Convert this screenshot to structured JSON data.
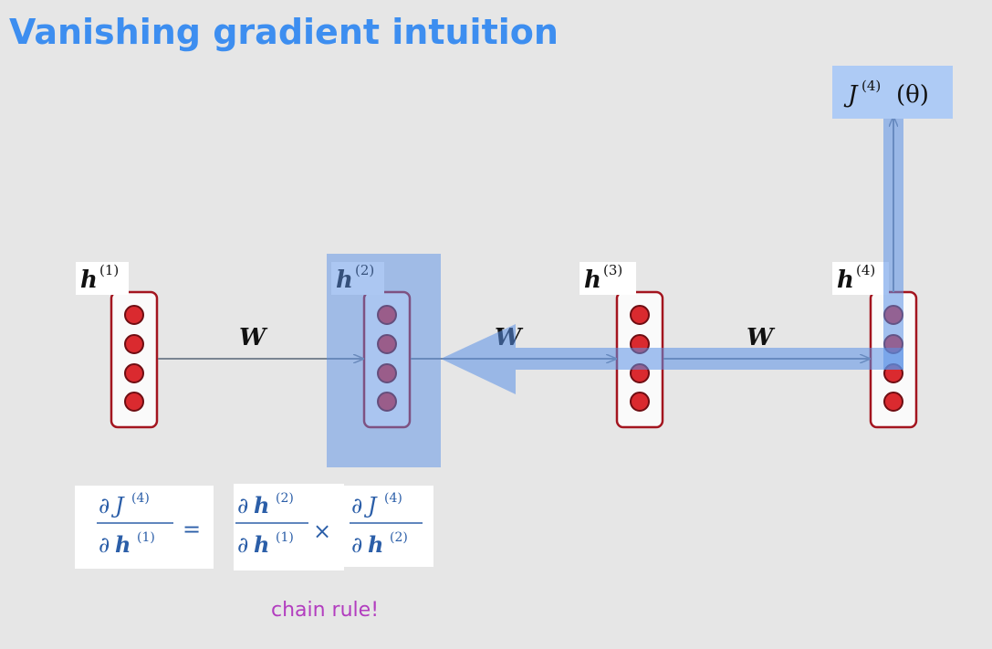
{
  "title": "Vanishing gradient intuition",
  "nodes": [
    {
      "label": {
        "base": "h",
        "sup": "(1)"
      }
    },
    {
      "label": {
        "base": "h",
        "sup": "(2)"
      }
    },
    {
      "label": {
        "base": "h",
        "sup": "(3)"
      }
    },
    {
      "label": {
        "base": "h",
        "sup": "(4)"
      }
    }
  ],
  "weights": [
    "W",
    "W",
    "W"
  ],
  "output": {
    "base": "J",
    "sup": "(4)",
    "arg": "(θ)"
  },
  "equation": {
    "lhs": {
      "num": {
        "d": "∂",
        "var": "J",
        "sup": "(4)"
      },
      "den": {
        "d": "∂",
        "var": "h",
        "sup": "(1)"
      }
    },
    "equals": "=",
    "rhs": [
      {
        "num": {
          "d": "∂",
          "var": "h",
          "sup": "(2)"
        },
        "den": {
          "d": "∂",
          "var": "h",
          "sup": "(1)"
        }
      },
      {
        "num": {
          "d": "∂",
          "var": "J",
          "sup": "(4)"
        },
        "den": {
          "d": "∂",
          "var": "h",
          "sup": "(2)"
        }
      }
    ],
    "times": "×"
  },
  "caption": "chain rule!"
}
